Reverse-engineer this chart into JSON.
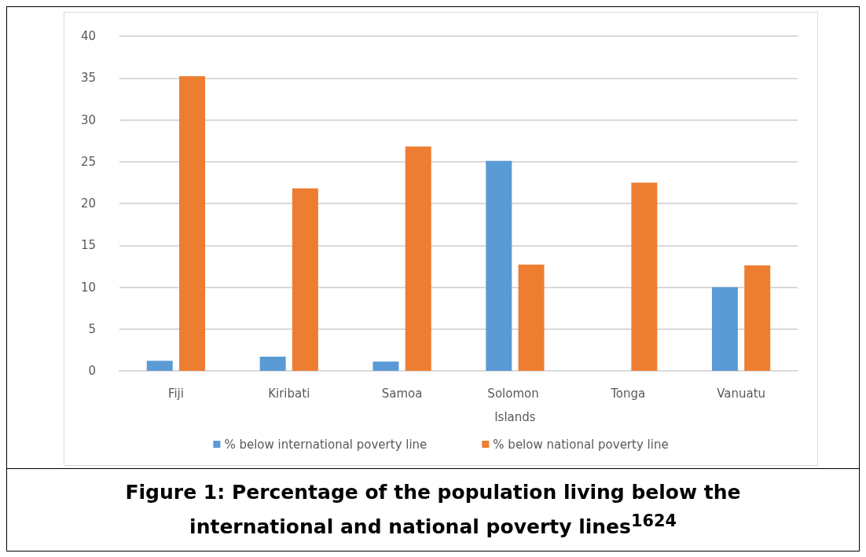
{
  "chart_data": {
    "type": "bar",
    "title": "Figure 1: Percentage of the population living below the international and national poverty lines$^{1624}$",
    "categories": [
      "Fiji",
      "Kiribati",
      "Samoa",
      "Solomon Islands",
      "Tonga",
      "Vanuatu"
    ],
    "series": [
      {
        "name": "% below international poverty line",
        "color": "#5b9bd5",
        "values": [
          1.2,
          1.7,
          1.1,
          25.1,
          null,
          10.0
        ]
      },
      {
        "name": "% below national poverty line",
        "color": "#ed7d31",
        "values": [
          35.2,
          21.8,
          26.8,
          12.7,
          22.5,
          12.6
        ]
      }
    ],
    "ylim": [
      0,
      40
    ],
    "yticks": [
      0,
      5,
      10,
      15,
      20,
      25,
      30,
      35,
      40
    ],
    "grid": "y",
    "legend": "bottom"
  }
}
